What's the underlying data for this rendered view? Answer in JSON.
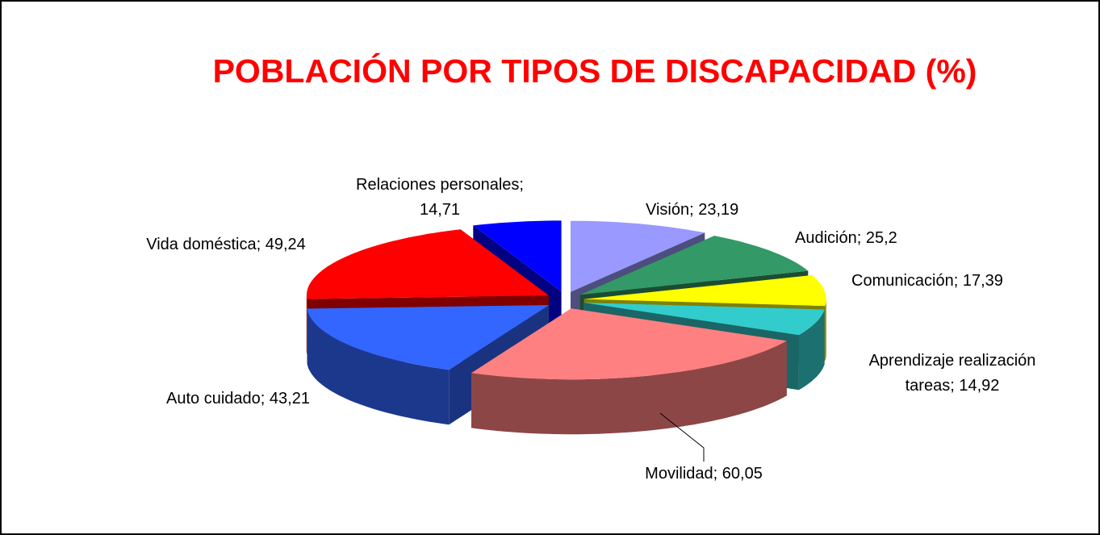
{
  "chart_data": {
    "type": "pie",
    "title": "POBLACIÓN POR TIPOS DE DISCAPACIDAD (%)",
    "values": [
      23.19,
      25.2,
      17.39,
      14.92,
      60.05,
      43.21,
      49.24,
      14.71
    ],
    "value_labels": [
      [
        "Visión; 23,19"
      ],
      [
        "Audición; 25,2"
      ],
      [
        "Comunicación; 17,39"
      ],
      [
        "Aprendizaje realización",
        "tareas; 14,92"
      ],
      [
        "Movilidad; 60,05"
      ],
      [
        "Auto cuidado; 43,21"
      ],
      [
        "Vida doméstica; 49,24"
      ],
      [
        "Relaciones personales;",
        "14,71"
      ]
    ],
    "colors": [
      "#9999ff",
      "#339966",
      "#ffff00",
      "#33cccc",
      "#ff8080",
      "#3366ff",
      "#ff0000",
      "#0000ff"
    ]
  }
}
